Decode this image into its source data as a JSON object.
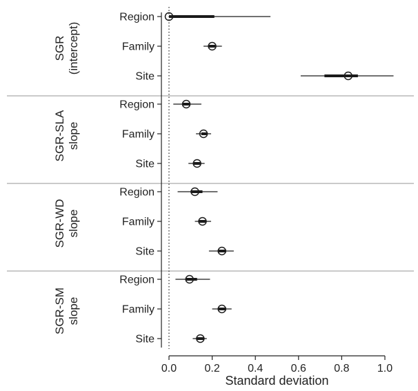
{
  "chart_data": {
    "type": "forest",
    "xlabel": "Standard deviation",
    "xlim": [
      -0.02,
      1.05
    ],
    "xticks": [
      0.0,
      0.2,
      0.4,
      0.6,
      0.8,
      1.0
    ],
    "xtick_labels": [
      "0.0",
      "0.2",
      "0.4",
      "0.6",
      "0.8",
      "1.0"
    ],
    "reference_line": {
      "x": 0,
      "style": "dotted"
    },
    "groups": [
      {
        "label_lines": [
          "SGR",
          "(intercept)"
        ],
        "rows": [
          {
            "label": "Region",
            "mean": 0.0,
            "inner": [
              0.0,
              0.21
            ],
            "outer": [
              0.0,
              0.47
            ]
          },
          {
            "label": "Family",
            "mean": 0.2,
            "inner": [
              0.185,
              0.215
            ],
            "outer": [
              0.16,
              0.245
            ]
          },
          {
            "label": "Site",
            "mean": 0.83,
            "inner": [
              0.72,
              0.875
            ],
            "outer": [
              0.61,
              1.04
            ]
          }
        ]
      },
      {
        "label_lines": [
          "SGR-SLA",
          "slope"
        ],
        "rows": [
          {
            "label": "Region",
            "mean": 0.08,
            "inner": [
              0.065,
              0.095
            ],
            "outer": [
              0.02,
              0.15
            ]
          },
          {
            "label": "Family",
            "mean": 0.16,
            "inner": [
              0.15,
              0.175
            ],
            "outer": [
              0.125,
              0.195
            ]
          },
          {
            "label": "Site",
            "mean": 0.13,
            "inner": [
              0.115,
              0.145
            ],
            "outer": [
              0.09,
              0.165
            ]
          }
        ]
      },
      {
        "label_lines": [
          "SGR-WD",
          "slope"
        ],
        "rows": [
          {
            "label": "Region",
            "mean": 0.12,
            "inner": [
              0.1,
              0.155
            ],
            "outer": [
              0.04,
              0.225
            ]
          },
          {
            "label": "Family",
            "mean": 0.155,
            "inner": [
              0.14,
              0.17
            ],
            "outer": [
              0.12,
              0.195
            ]
          },
          {
            "label": "Site",
            "mean": 0.245,
            "inner": [
              0.23,
              0.265
            ],
            "outer": [
              0.185,
              0.3
            ]
          }
        ]
      },
      {
        "label_lines": [
          "SGR-SM",
          "slope"
        ],
        "rows": [
          {
            "label": "Region",
            "mean": 0.095,
            "inner": [
              0.08,
              0.13
            ],
            "outer": [
              0.03,
              0.19
            ]
          },
          {
            "label": "Family",
            "mean": 0.245,
            "inner": [
              0.23,
              0.265
            ],
            "outer": [
              0.2,
              0.29
            ]
          },
          {
            "label": "Site",
            "mean": 0.145,
            "inner": [
              0.13,
              0.16
            ],
            "outer": [
              0.11,
              0.175
            ]
          }
        ]
      }
    ],
    "colors": {
      "marks": "#1a1a1a",
      "separator": "#b8b8b8",
      "axis": "#222222"
    }
  }
}
